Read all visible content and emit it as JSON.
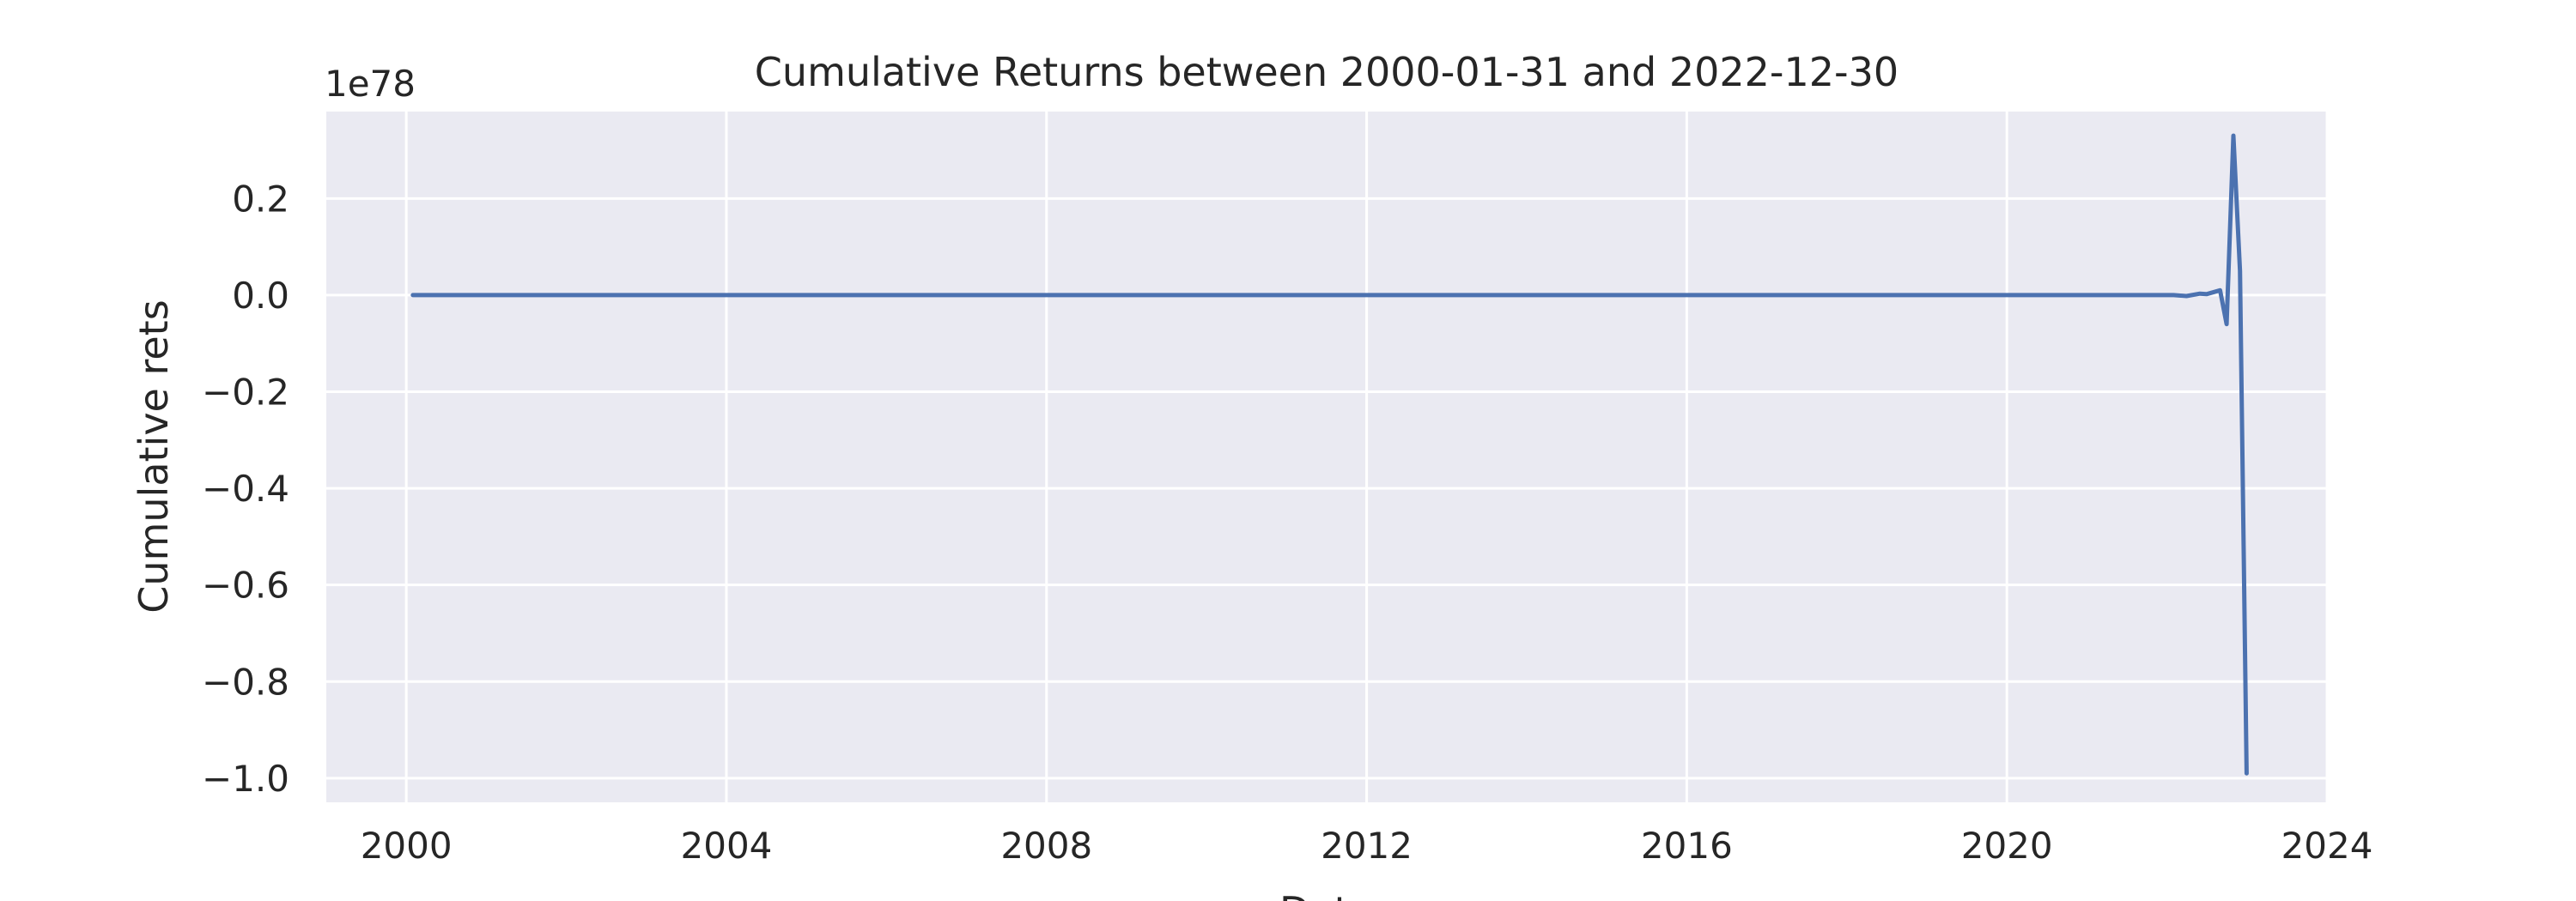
{
  "chart_data": {
    "type": "line",
    "title": "Cumulative Returns between 2000-01-31 and 2022-12-30",
    "xlabel": "Date",
    "ylabel": "Cumulative rets",
    "offset_label": "1e78",
    "y_scale": 1e+78,
    "xlim": [
      "1999-01-01",
      "2024-01-01"
    ],
    "ylim": [
      -1.05,
      0.38
    ],
    "x_ticks": [
      {
        "date": "2000-01-01",
        "label": "2000"
      },
      {
        "date": "2004-01-01",
        "label": "2004"
      },
      {
        "date": "2008-01-01",
        "label": "2008"
      },
      {
        "date": "2012-01-01",
        "label": "2012"
      },
      {
        "date": "2016-01-01",
        "label": "2016"
      },
      {
        "date": "2020-01-01",
        "label": "2020"
      },
      {
        "date": "2024-01-01",
        "label": "2024"
      }
    ],
    "y_ticks": [
      {
        "value": 0.2,
        "label": "0.2"
      },
      {
        "value": 0.0,
        "label": "0.0"
      },
      {
        "value": -0.2,
        "label": "−0.2"
      },
      {
        "value": -0.4,
        "label": "−0.4"
      },
      {
        "value": -0.6,
        "label": "−0.6"
      },
      {
        "value": -0.8,
        "label": "−0.8"
      },
      {
        "value": -1.0,
        "label": "−1.0"
      }
    ],
    "grid": true,
    "colors": {
      "background": "#eaeaf2",
      "grid": "#ffffff",
      "line": "#4c72b0",
      "text": "#262626"
    },
    "series": [
      {
        "x": [
          "2000-01-31",
          "2022-01-31",
          "2022-03-31",
          "2022-05-31",
          "2022-06-30",
          "2022-08-31",
          "2022-09-30",
          "2022-10-31",
          "2022-11-30",
          "2022-12-30"
        ],
        "y": [
          0.0,
          0.0,
          -0.002,
          0.003,
          0.002,
          0.01,
          -0.06,
          0.33,
          0.05,
          -0.99
        ]
      }
    ]
  }
}
